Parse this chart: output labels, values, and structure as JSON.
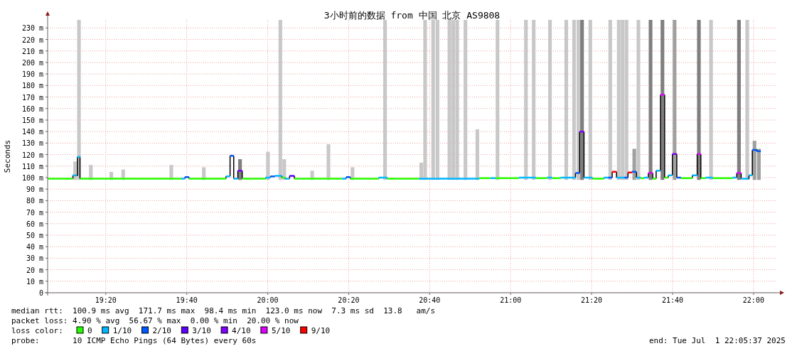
{
  "chart_data": {
    "type": "line",
    "title": "3小时前的数据 from 中国 北京 AS9808",
    "ylabel": "Seconds",
    "legend_title": "loss color:",
    "legend": "bottom",
    "grid": true,
    "xlim": [
      19.094,
      22.094
    ],
    "ylim": [
      0,
      237
    ],
    "xticks": [
      {
        "value": 19.3333,
        "label": "19:20"
      },
      {
        "value": 19.6667,
        "label": "19:40"
      },
      {
        "value": 20.0,
        "label": "20:00"
      },
      {
        "value": 20.3333,
        "label": "20:20"
      },
      {
        "value": 20.6667,
        "label": "20:40"
      },
      {
        "value": 21.0,
        "label": "21:00"
      },
      {
        "value": 21.3333,
        "label": "21:20"
      },
      {
        "value": 21.6667,
        "label": "21:40"
      },
      {
        "value": 22.0,
        "label": "22:00"
      }
    ],
    "yticks": [
      0,
      {
        "value": 10,
        "label": "10 m"
      },
      {
        "value": 20,
        "label": "20 m"
      },
      {
        "value": 30,
        "label": "30 m"
      },
      {
        "value": 40,
        "label": "40 m"
      },
      {
        "value": 50,
        "label": "50 m"
      },
      {
        "value": 60,
        "label": "60 m"
      },
      {
        "value": 70,
        "label": "70 m"
      },
      {
        "value": 80,
        "label": "80 m"
      },
      {
        "value": 90,
        "label": "90 m"
      },
      {
        "value": 100,
        "label": "100 m"
      },
      {
        "value": 110,
        "label": "110 m"
      },
      {
        "value": 120,
        "label": "120 m"
      },
      {
        "value": 130,
        "label": "130 m"
      },
      {
        "value": 140,
        "label": "140 m"
      },
      {
        "value": 150,
        "label": "150 m"
      },
      {
        "value": 160,
        "label": "160 m"
      },
      {
        "value": 170,
        "label": "170 m"
      },
      {
        "value": 180,
        "label": "180 m"
      },
      {
        "value": 190,
        "label": "190 m"
      },
      {
        "value": 200,
        "label": "200 m"
      },
      {
        "value": 210,
        "label": "210 m"
      },
      {
        "value": 220,
        "label": "220 m"
      },
      {
        "value": 230,
        "label": "230 m"
      }
    ],
    "series": [
      {
        "type": "bar",
        "x": [
          19.207,
          19.223,
          19.272,
          19.356,
          19.405,
          19.603,
          19.737,
          19.886,
          20.001,
          20.052,
          20.068,
          20.183,
          20.25,
          20.349,
          20.483,
          20.632,
          20.648,
          20.681,
          20.699,
          20.748,
          20.764,
          20.78,
          20.814,
          20.863,
          20.946,
          21.063,
          21.095,
          21.162,
          21.229,
          21.261,
          21.279,
          21.294,
          21.328,
          21.41,
          21.445,
          21.461,
          21.477,
          21.509,
          21.526,
          21.576,
          21.625,
          21.675,
          21.775,
          21.825,
          21.94,
          21.974,
          22.004,
          22.022
        ],
        "base": [
          98,
          98,
          98,
          98,
          98,
          98,
          98,
          98,
          98,
          98,
          98,
          98,
          98,
          98,
          98,
          98,
          98,
          98,
          98,
          98,
          98,
          98,
          98,
          98,
          98,
          98,
          98,
          98,
          98,
          98,
          98,
          98,
          98,
          98,
          98,
          98,
          98,
          98,
          98,
          98,
          98,
          98,
          98,
          98,
          98,
          98,
          98,
          98
        ],
        "values": [
          16,
          139,
          13,
          7,
          9,
          13,
          11,
          18,
          24.5,
          139,
          18,
          8,
          31,
          11,
          139,
          15,
          139,
          139,
          139,
          139,
          139,
          139,
          139,
          44,
          139,
          139,
          139,
          139,
          139,
          139,
          139,
          139,
          139,
          139,
          139,
          139,
          139,
          27,
          139,
          139,
          139,
          139,
          139,
          139,
          139,
          139,
          34,
          27
        ],
        "colors": [
          "#c8c8c8",
          "#c8c8c8",
          "#c8c8c8",
          "#c8c8c8",
          "#c8c8c8",
          "#c8c8c8",
          "#c8c8c8",
          "#7f7f7f",
          "#c8c8c8",
          "#c8c8c8",
          "#c8c8c8",
          "#c8c8c8",
          "#c8c8c8",
          "#c8c8c8",
          "#c8c8c8",
          "#c8c8c8",
          "#c8c8c8",
          "#c8c8c8",
          "#c8c8c8",
          "#c8c8c8",
          "#c8c8c8",
          "#c8c8c8",
          "#c8c8c8",
          "#c8c8c8",
          "#c8c8c8",
          "#c8c8c8",
          "#c8c8c8",
          "#c8c8c8",
          "#c8c8c8",
          "#c8c8c8",
          "#c8c8c8",
          "#7f7f7f",
          "#c8c8c8",
          "#c8c8c8",
          "#c8c8c8",
          "#c8c8c8",
          "#c8c8c8",
          "#a0a0a0",
          "#c8c8c8",
          "#7f7f7f",
          "#7f7f7f",
          "#a0a0a0",
          "#7f7f7f",
          "#c8c8c8",
          "#7f7f7f",
          "#c8c8c8",
          "#a0a0a0",
          "#a0a0a0"
        ]
      },
      {
        "name": "0",
        "color": "#26ff00",
        "x": [
          19.094,
          19.198,
          null,
          19.227,
          19.644,
          null,
          19.676,
          19.828,
          null,
          19.895,
          19.991,
          null,
          20.058,
          20.072,
          null,
          20.11,
          20.305,
          null,
          20.34,
          20.457,
          null,
          20.492,
          20.623,
          null,
          20.871,
          20.917,
          null,
          20.938,
          21.034,
          null,
          21.104,
          21.15,
          null,
          21.171,
          21.206,
          null,
          21.337,
          21.384,
          null,
          21.535,
          21.55,
          null,
          21.585,
          21.599,
          null,
          21.634,
          21.649,
          null,
          21.701,
          21.748,
          null,
          21.783,
          21.803,
          null,
          21.832,
          21.914
        ],
        "values": [
          99,
          99,
          null,
          99,
          99,
          null,
          99,
          99,
          null,
          99,
          99,
          null,
          100,
          100,
          null,
          99,
          99,
          null,
          99,
          99,
          null,
          99,
          99,
          null,
          99.5,
          99.5,
          null,
          99.5,
          99.5,
          null,
          99.5,
          99.5,
          null,
          99.5,
          99.5,
          null,
          99,
          99,
          null,
          99.5,
          99.5,
          null,
          99,
          99,
          null,
          100,
          100,
          null,
          99.5,
          99.5,
          null,
          99.5,
          99.5,
          null,
          99.5,
          99.5
        ]
      },
      {
        "name": "1/10",
        "color": "#00b8ff",
        "x": [
          19.198,
          19.213,
          null,
          19.217,
          19.229,
          null,
          19.644,
          19.659,
          null,
          19.828,
          19.845,
          null,
          19.86,
          19.877,
          null,
          19.991,
          20.011,
          null,
          20.029,
          20.058,
          null,
          20.072,
          20.09,
          null,
          20.305,
          20.323,
          null,
          20.457,
          20.492,
          null,
          20.623,
          20.871,
          null,
          20.917,
          20.938,
          null,
          21.034,
          21.104,
          null,
          21.15,
          21.171,
          null,
          21.206,
          21.267,
          null,
          21.302,
          21.337,
          null,
          21.384,
          21.401,
          null,
          21.436,
          21.468,
          null,
          21.518,
          21.535,
          null,
          21.55,
          21.567,
          null,
          21.599,
          21.617,
          null,
          21.649,
          21.666,
          null,
          21.748,
          21.768,
          null,
          21.803,
          21.832,
          null,
          21.914,
          21.931,
          null,
          21.949,
          21.98,
          null,
          21.981,
          21.995
        ],
        "values": [
          102,
          102,
          null,
          118,
          118,
          null,
          99,
          99,
          null,
          101,
          101,
          null,
          99,
          99,
          null,
          100,
          100,
          null,
          101.5,
          101.5,
          null,
          99,
          99,
          null,
          99,
          99,
          null,
          100,
          100,
          null,
          99,
          99,
          null,
          99.5,
          99.5,
          null,
          100,
          100,
          null,
          100,
          100,
          null,
          100,
          100,
          null,
          100,
          100,
          null,
          100,
          100,
          null,
          100,
          100,
          null,
          100,
          100,
          null,
          100,
          100,
          null,
          106,
          106,
          null,
          102,
          102,
          null,
          102,
          102,
          null,
          100,
          100,
          null,
          100,
          100,
          null,
          99,
          99,
          null,
          102,
          102
        ]
      },
      {
        "name": "2/10",
        "color": "#0059ff",
        "x": [
          19.659,
          19.676,
          null,
          19.845,
          19.86,
          null,
          20.011,
          20.029,
          null,
          20.323,
          20.34,
          null,
          21.267,
          21.284,
          null,
          21.401,
          21.418,
          null,
          21.468,
          21.483,
          null,
          21.5,
          21.518,
          null,
          21.684,
          21.701,
          null,
          21.995,
          22.012,
          null,
          22.013,
          22.03
        ],
        "values": [
          100.5,
          100.5,
          null,
          119,
          119,
          null,
          101,
          101,
          null,
          100.5,
          100.5,
          null,
          104,
          104,
          null,
          100,
          100,
          null,
          100,
          100,
          null,
          105,
          105,
          null,
          100,
          100,
          null,
          124,
          124,
          null,
          123,
          123
        ]
      },
      {
        "name": "3/10",
        "color": "#5e00ff",
        "x": [
          20.09,
          20.11
        ],
        "values": [
          101.5,
          101.5
        ]
      },
      {
        "name": "4/10",
        "color": "#7e00ff",
        "x": [
          19.877,
          19.895,
          null,
          21.284,
          21.302,
          null,
          21.666,
          21.684
        ],
        "values": [
          106,
          106,
          null,
          140,
          140,
          null,
          120.5,
          120.5
        ]
      },
      {
        "name": "5/10",
        "color": "#dd00ff",
        "x": [
          21.567,
          21.585,
          null,
          21.617,
          21.634,
          null,
          21.768,
          21.783,
          null,
          21.931,
          21.949
        ],
        "values": [
          104,
          104,
          null,
          172,
          172,
          null,
          120.5,
          120.5,
          null,
          104,
          104
        ]
      },
      {
        "name": "9/10",
        "color": "#ff0000",
        "x": [
          21.418,
          21.436,
          null,
          21.483,
          21.5
        ],
        "values": [
          105,
          105,
          null,
          104.5,
          104.5
        ]
      }
    ],
    "annotations": [
      "median rtt:  100.9 ms avg  171.7 ms max  98.4 ms min  123.0 ms now  7.3 ms sd  13.8   am/s",
      "packet loss: 4.90 % avg  56.67 % max  0.00 % min  20.00 % now",
      "probe:       10 ICMP Echo Pings (64 Bytes) every 60s",
      "end: Tue Jul  1 22:05:37 2025"
    ]
  }
}
